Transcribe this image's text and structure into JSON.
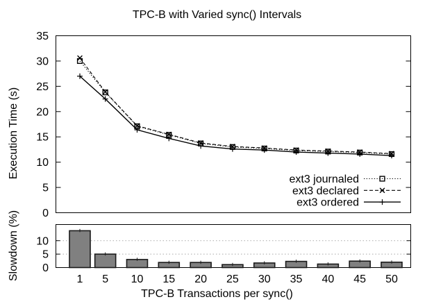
{
  "colors": {
    "line": "#000000",
    "bar_fill": "#808080",
    "bar_border": "#1a1a1a",
    "grid": "#a8a8a8",
    "background": "#ffffff"
  },
  "chart_data": [
    {
      "type": "line",
      "title": "TPC-B with Varied sync() Intervals",
      "ylabel": "Execution Time (s)",
      "ylim": [
        0,
        35
      ],
      "yticks": [
        0,
        5,
        10,
        15,
        20,
        25,
        30,
        35
      ],
      "x": [
        1,
        5,
        10,
        15,
        20,
        25,
        30,
        35,
        40,
        45,
        50
      ],
      "grid": false,
      "legend_position": "bottom-right",
      "series": [
        {
          "name": "ext3 journaled",
          "style": "dotted",
          "marker": "square",
          "values": [
            30.0,
            23.8,
            17.1,
            15.4,
            13.7,
            13.0,
            12.7,
            12.3,
            12.1,
            11.9,
            11.6
          ]
        },
        {
          "name": "ext3 declared",
          "style": "dashed",
          "marker": "x",
          "values": [
            30.6,
            23.9,
            17.2,
            15.5,
            13.8,
            13.1,
            12.8,
            12.4,
            12.2,
            12.0,
            11.7
          ]
        },
        {
          "name": "ext3 ordered",
          "style": "solid",
          "marker": "plus",
          "values": [
            27.0,
            22.5,
            16.4,
            14.7,
            13.2,
            12.6,
            12.4,
            12.0,
            11.8,
            11.6,
            11.3
          ]
        }
      ]
    },
    {
      "type": "bar",
      "ylabel": "Slowdown (%)",
      "xlabel": "TPC-B Transactions per sync()",
      "ylim": [
        0,
        16
      ],
      "yticks": [
        0,
        5,
        10
      ],
      "grid_yticks": [
        5,
        10
      ],
      "grid": true,
      "categories": [
        1,
        5,
        10,
        15,
        20,
        25,
        30,
        35,
        40,
        45,
        50
      ],
      "values": [
        13.7,
        5.0,
        3.0,
        1.9,
        1.9,
        1.1,
        1.7,
        2.3,
        1.3,
        2.4,
        2.0
      ]
    }
  ]
}
